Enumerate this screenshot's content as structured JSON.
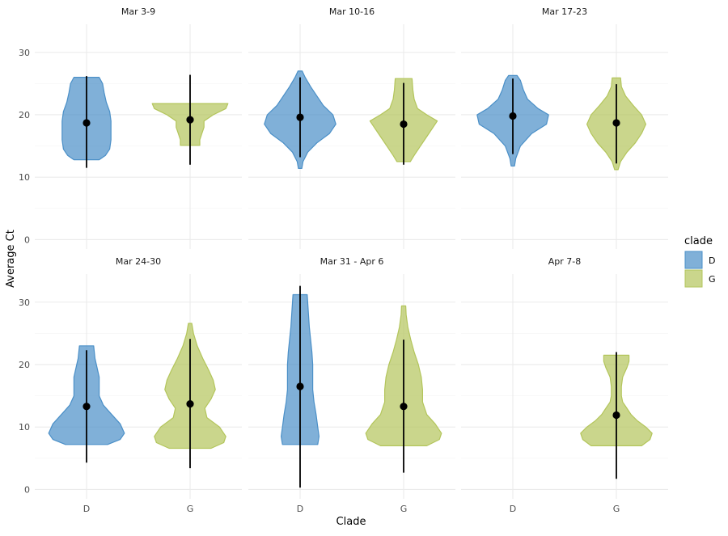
{
  "chart_data": {
    "type": "violin",
    "xlabel": "Clade",
    "ylabel": "Average Ct",
    "ylim": [
      -1.5,
      34.5
    ],
    "y_ticks": [
      0,
      10,
      20,
      30
    ],
    "categories": [
      "D",
      "G"
    ],
    "legend": {
      "title": "clade",
      "position": "right",
      "entries": [
        {
          "label": "D",
          "color": "#4a8fc7"
        },
        {
          "label": "G",
          "color": "#b3c55b"
        }
      ]
    },
    "colors": {
      "D": "#4a8fc7",
      "G": "#b3c55b"
    },
    "panels": [
      {
        "title": "Mar 3-9",
        "series": [
          {
            "clade": "D",
            "mean": 18.7,
            "line_low": 11.5,
            "line_high": 26.2,
            "violin": [
              [
                12.8,
                0.3
              ],
              [
                13.5,
                0.45
              ],
              [
                14.5,
                0.55
              ],
              [
                16,
                0.58
              ],
              [
                17.5,
                0.58
              ],
              [
                19,
                0.58
              ],
              [
                20.5,
                0.55
              ],
              [
                22,
                0.47
              ],
              [
                23.5,
                0.42
              ],
              [
                25,
                0.38
              ],
              [
                26,
                0.3
              ]
            ]
          },
          {
            "clade": "G",
            "mean": 19.2,
            "line_low": 12,
            "line_high": 26.4,
            "violin": [
              [
                15.1,
                0.23
              ],
              [
                16,
                0.23
              ],
              [
                17,
                0.28
              ],
              [
                18,
                0.33
              ],
              [
                19,
                0.33
              ],
              [
                20,
                0.55
              ],
              [
                21,
                0.85
              ],
              [
                21.8,
                0.9
              ]
            ]
          }
        ]
      },
      {
        "title": "Mar 10-16",
        "series": [
          {
            "clade": "D",
            "mean": 19.6,
            "line_low": 13.2,
            "line_high": 26,
            "violin": [
              [
                11.4,
                0.04
              ],
              [
                12.5,
                0.07
              ],
              [
                14,
                0.18
              ],
              [
                15.5,
                0.4
              ],
              [
                17,
                0.7
              ],
              [
                18.5,
                0.85
              ],
              [
                20,
                0.78
              ],
              [
                21.5,
                0.55
              ],
              [
                23,
                0.4
              ],
              [
                24.5,
                0.25
              ],
              [
                26,
                0.12
              ],
              [
                27,
                0.05
              ]
            ]
          },
          {
            "clade": "G",
            "mean": 18.5,
            "line_low": 12,
            "line_high": 25.1,
            "violin": [
              [
                12.5,
                0.16
              ],
              [
                13.5,
                0.25
              ],
              [
                15,
                0.4
              ],
              [
                16.5,
                0.55
              ],
              [
                18,
                0.7
              ],
              [
                19,
                0.8
              ],
              [
                20,
                0.55
              ],
              [
                21,
                0.33
              ],
              [
                22.5,
                0.25
              ],
              [
                24,
                0.22
              ],
              [
                25.8,
                0.2
              ]
            ]
          }
        ]
      },
      {
        "title": "Mar 17-23",
        "series": [
          {
            "clade": "D",
            "mean": 19.8,
            "line_low": 13.7,
            "line_high": 25.8,
            "violin": [
              [
                11.8,
                0.04
              ],
              [
                13,
                0.07
              ],
              [
                15,
                0.18
              ],
              [
                17,
                0.45
              ],
              [
                18.5,
                0.8
              ],
              [
                20,
                0.85
              ],
              [
                21,
                0.6
              ],
              [
                22.5,
                0.35
              ],
              [
                24,
                0.25
              ],
              [
                25.5,
                0.18
              ],
              [
                26.3,
                0.1
              ]
            ]
          },
          {
            "clade": "G",
            "mean": 18.7,
            "line_low": 12.2,
            "line_high": 24.9,
            "violin": [
              [
                11.2,
                0.04
              ],
              [
                12.5,
                0.1
              ],
              [
                14,
                0.25
              ],
              [
                15.5,
                0.45
              ],
              [
                17,
                0.6
              ],
              [
                18.5,
                0.7
              ],
              [
                20,
                0.6
              ],
              [
                21.5,
                0.4
              ],
              [
                23,
                0.22
              ],
              [
                24.5,
                0.12
              ],
              [
                25.9,
                0.1
              ]
            ]
          }
        ]
      },
      {
        "title": "Mar 24-30",
        "series": [
          {
            "clade": "D",
            "mean": 13.3,
            "line_low": 4.3,
            "line_high": 22.3,
            "violin": [
              [
                7.2,
                0.5
              ],
              [
                8,
                0.8
              ],
              [
                9,
                0.9
              ],
              [
                10.5,
                0.8
              ],
              [
                12,
                0.6
              ],
              [
                13.5,
                0.4
              ],
              [
                15,
                0.3
              ],
              [
                16.5,
                0.3
              ],
              [
                18,
                0.3
              ],
              [
                19.5,
                0.25
              ],
              [
                21,
                0.2
              ],
              [
                23,
                0.17
              ]
            ]
          },
          {
            "clade": "G",
            "mean": 13.7,
            "line_low": 3.4,
            "line_high": 24.1,
            "violin": [
              [
                6.6,
                0.5
              ],
              [
                7.5,
                0.8
              ],
              [
                8.5,
                0.85
              ],
              [
                10,
                0.7
              ],
              [
                11.5,
                0.4
              ],
              [
                13,
                0.35
              ],
              [
                14.5,
                0.5
              ],
              [
                16,
                0.6
              ],
              [
                17.5,
                0.55
              ],
              [
                19,
                0.45
              ],
              [
                21,
                0.3
              ],
              [
                23,
                0.17
              ],
              [
                25,
                0.08
              ],
              [
                26.6,
                0.04
              ]
            ]
          }
        ]
      },
      {
        "title": "Mar 31 - Apr 6",
        "series": [
          {
            "clade": "D",
            "mean": 16.5,
            "line_low": 0.3,
            "line_high": 32.6,
            "violin": [
              [
                7.2,
                0.42
              ],
              [
                8.5,
                0.45
              ],
              [
                10,
                0.42
              ],
              [
                12,
                0.38
              ],
              [
                14,
                0.33
              ],
              [
                16,
                0.3
              ],
              [
                18,
                0.3
              ],
              [
                20,
                0.3
              ],
              [
                22,
                0.28
              ],
              [
                24,
                0.25
              ],
              [
                26,
                0.22
              ],
              [
                28,
                0.2
              ],
              [
                30,
                0.18
              ],
              [
                31.2,
                0.17
              ]
            ]
          },
          {
            "clade": "G",
            "mean": 13.3,
            "line_low": 2.7,
            "line_high": 24.0,
            "violin": [
              [
                7,
                0.55
              ],
              [
                8,
                0.85
              ],
              [
                9,
                0.9
              ],
              [
                10.5,
                0.75
              ],
              [
                12,
                0.55
              ],
              [
                14,
                0.45
              ],
              [
                16,
                0.45
              ],
              [
                18,
                0.42
              ],
              [
                20,
                0.35
              ],
              [
                22,
                0.25
              ],
              [
                24,
                0.17
              ],
              [
                26,
                0.1
              ],
              [
                28,
                0.06
              ],
              [
                29.4,
                0.05
              ]
            ]
          }
        ]
      },
      {
        "title": "Apr 7-8",
        "series": [
          {
            "clade": "G",
            "mean": 11.9,
            "line_low": 1.7,
            "line_high": 22.0,
            "violin": [
              [
                7,
                0.6
              ],
              [
                8,
                0.8
              ],
              [
                9,
                0.85
              ],
              [
                10,
                0.7
              ],
              [
                11,
                0.5
              ],
              [
                12,
                0.35
              ],
              [
                13,
                0.25
              ],
              [
                14,
                0.15
              ],
              [
                15,
                0.12
              ],
              [
                16.5,
                0.12
              ],
              [
                18,
                0.15
              ],
              [
                19.5,
                0.25
              ],
              [
                20.5,
                0.3
              ],
              [
                21.5,
                0.3
              ]
            ]
          }
        ]
      }
    ]
  }
}
